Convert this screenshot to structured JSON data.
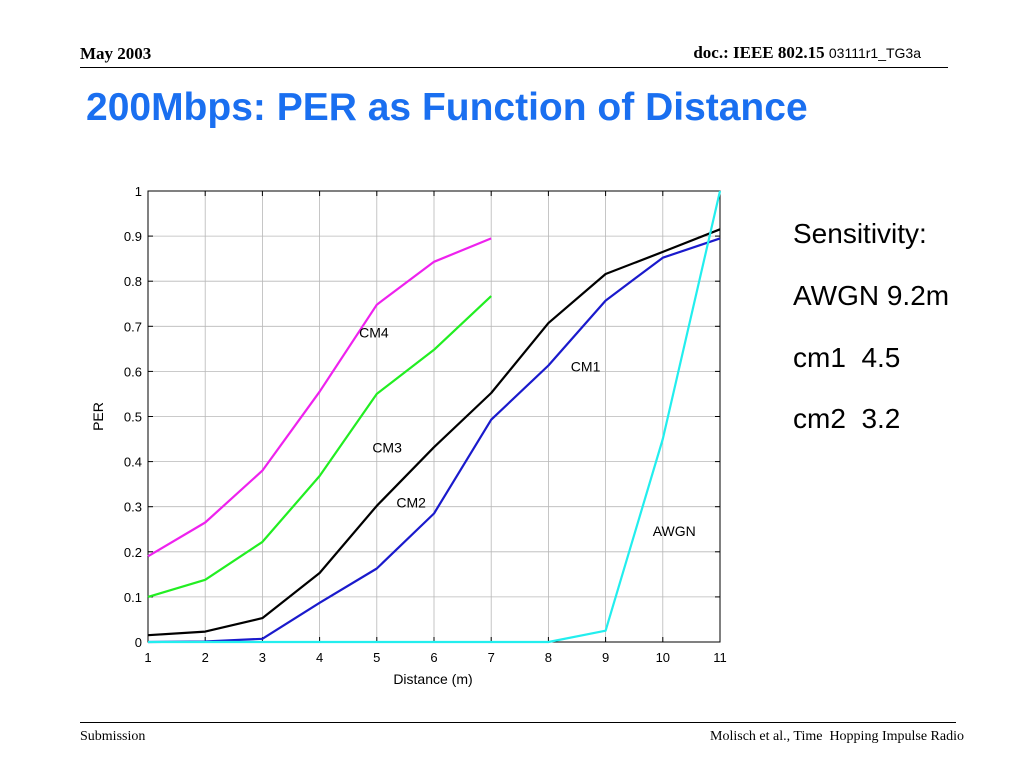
{
  "header": {
    "date": "May 2003",
    "doc_prefix": "doc.: IEEE 802.15",
    "doc_number": "03111r1_TG3a"
  },
  "slide": {
    "title": "200Mbps: PER as Function of Distance",
    "title_color": "#1a6ff0"
  },
  "sidebar": {
    "lines": [
      "Sensitivity:",
      "AWGN 9.2m",
      "cm1  4.5",
      "cm2  3.2"
    ]
  },
  "footer": {
    "left": "Submission",
    "right": "Molisch et al., Time  Hopping Impulse Radio"
  },
  "chart_data": {
    "type": "line",
    "xlabel": "Distance (m)",
    "ylabel": "PER",
    "xlim": [
      1,
      11
    ],
    "ylim": [
      0,
      1
    ],
    "x_ticks": [
      1,
      2,
      3,
      4,
      5,
      6,
      7,
      8,
      9,
      10,
      11
    ],
    "y_ticks": [
      "0",
      "0.1",
      "0.2",
      "0.3",
      "0.4",
      "0.5",
      "0.6",
      "0.7",
      "0.8",
      "0.9",
      "1"
    ],
    "grid": true,
    "series": [
      {
        "name": "CM4",
        "color": "#ee22ee",
        "x": [
          1,
          2,
          3,
          4,
          5,
          6,
          7
        ],
        "y": [
          0.19,
          0.265,
          0.38,
          0.555,
          0.748,
          0.843,
          0.895
        ]
      },
      {
        "name": "CM3",
        "color": "#22ee22",
        "x": [
          1,
          2,
          3,
          4,
          5,
          6,
          7
        ],
        "y": [
          0.1,
          0.138,
          0.222,
          0.368,
          0.55,
          0.648,
          0.767
        ]
      },
      {
        "name": "CM2",
        "color": "#000000",
        "x": [
          1,
          2,
          3,
          4,
          5,
          6,
          7,
          8,
          9,
          10,
          11
        ],
        "y": [
          0.015,
          0.023,
          0.053,
          0.153,
          0.302,
          0.432,
          0.552,
          0.707,
          0.816,
          0.865,
          0.915
        ]
      },
      {
        "name": "CM1",
        "color": "#1a1acc",
        "x": [
          1,
          2,
          3,
          4,
          5,
          6,
          7,
          8,
          9,
          10,
          11
        ],
        "y": [
          0,
          0.001,
          0.007,
          0.087,
          0.163,
          0.285,
          0.493,
          0.613,
          0.757,
          0.852,
          0.895
        ]
      },
      {
        "name": "AWGN",
        "color": "#22eeee",
        "x": [
          1,
          2,
          3,
          4,
          5,
          6,
          7,
          8,
          9,
          10,
          11
        ],
        "y": [
          0,
          0,
          0,
          0,
          0,
          0,
          0,
          0,
          0.025,
          0.45,
          1.0
        ]
      }
    ],
    "annotations": [
      {
        "text": "CM4",
        "x": 4.95,
        "y": 0.675
      },
      {
        "text": "CM3",
        "x": 5.18,
        "y": 0.42
      },
      {
        "text": "CM2",
        "x": 5.6,
        "y": 0.298
      },
      {
        "text": "CM1",
        "x": 8.65,
        "y": 0.6
      },
      {
        "text": "AWGN",
        "x": 10.2,
        "y": 0.235
      }
    ]
  }
}
